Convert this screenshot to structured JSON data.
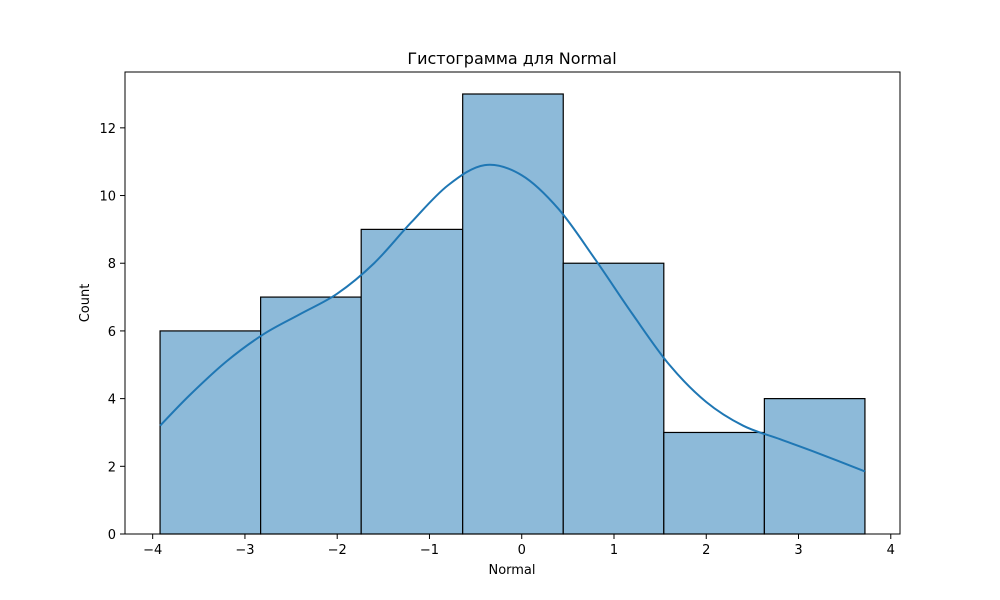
{
  "chart_data": {
    "type": "bar",
    "title": "Гистограмма для Normal",
    "xlabel": "Normal",
    "ylabel": "Count",
    "xlim": [
      -4.3,
      4.1
    ],
    "ylim": [
      0,
      13.65
    ],
    "xticks": [
      -4,
      -3,
      -2,
      -1,
      0,
      1,
      2,
      3,
      4
    ],
    "xtick_labels": [
      "−4",
      "−3",
      "−2",
      "−1",
      "0",
      "1",
      "2",
      "3",
      "4"
    ],
    "yticks": [
      0,
      2,
      4,
      6,
      8,
      10,
      12
    ],
    "ytick_labels": [
      "0",
      "2",
      "4",
      "6",
      "8",
      "10",
      "12"
    ],
    "bin_edges": [
      -3.92,
      -2.83,
      -1.74,
      -0.64,
      0.45,
      1.54,
      2.63,
      3.72
    ],
    "counts": [
      6,
      7,
      9,
      13,
      8,
      3,
      4
    ],
    "kde": {
      "x": [
        -3.92,
        -3.6,
        -3.2,
        -2.8,
        -2.4,
        -2.0,
        -1.6,
        -1.2,
        -0.8,
        -0.4,
        0.0,
        0.4,
        0.8,
        1.2,
        1.6,
        2.0,
        2.4,
        2.8,
        3.2,
        3.72
      ],
      "y": [
        3.2,
        4.1,
        5.1,
        5.9,
        6.5,
        7.1,
        8.0,
        9.2,
        10.3,
        10.9,
        10.6,
        9.6,
        8.1,
        6.5,
        5.0,
        3.9,
        3.2,
        2.8,
        2.4,
        1.85
      ]
    },
    "grid": false,
    "colors": {
      "bar_fill": "#8dbad9",
      "bar_edge": "#000000",
      "kde_line": "#1f77b4"
    }
  }
}
